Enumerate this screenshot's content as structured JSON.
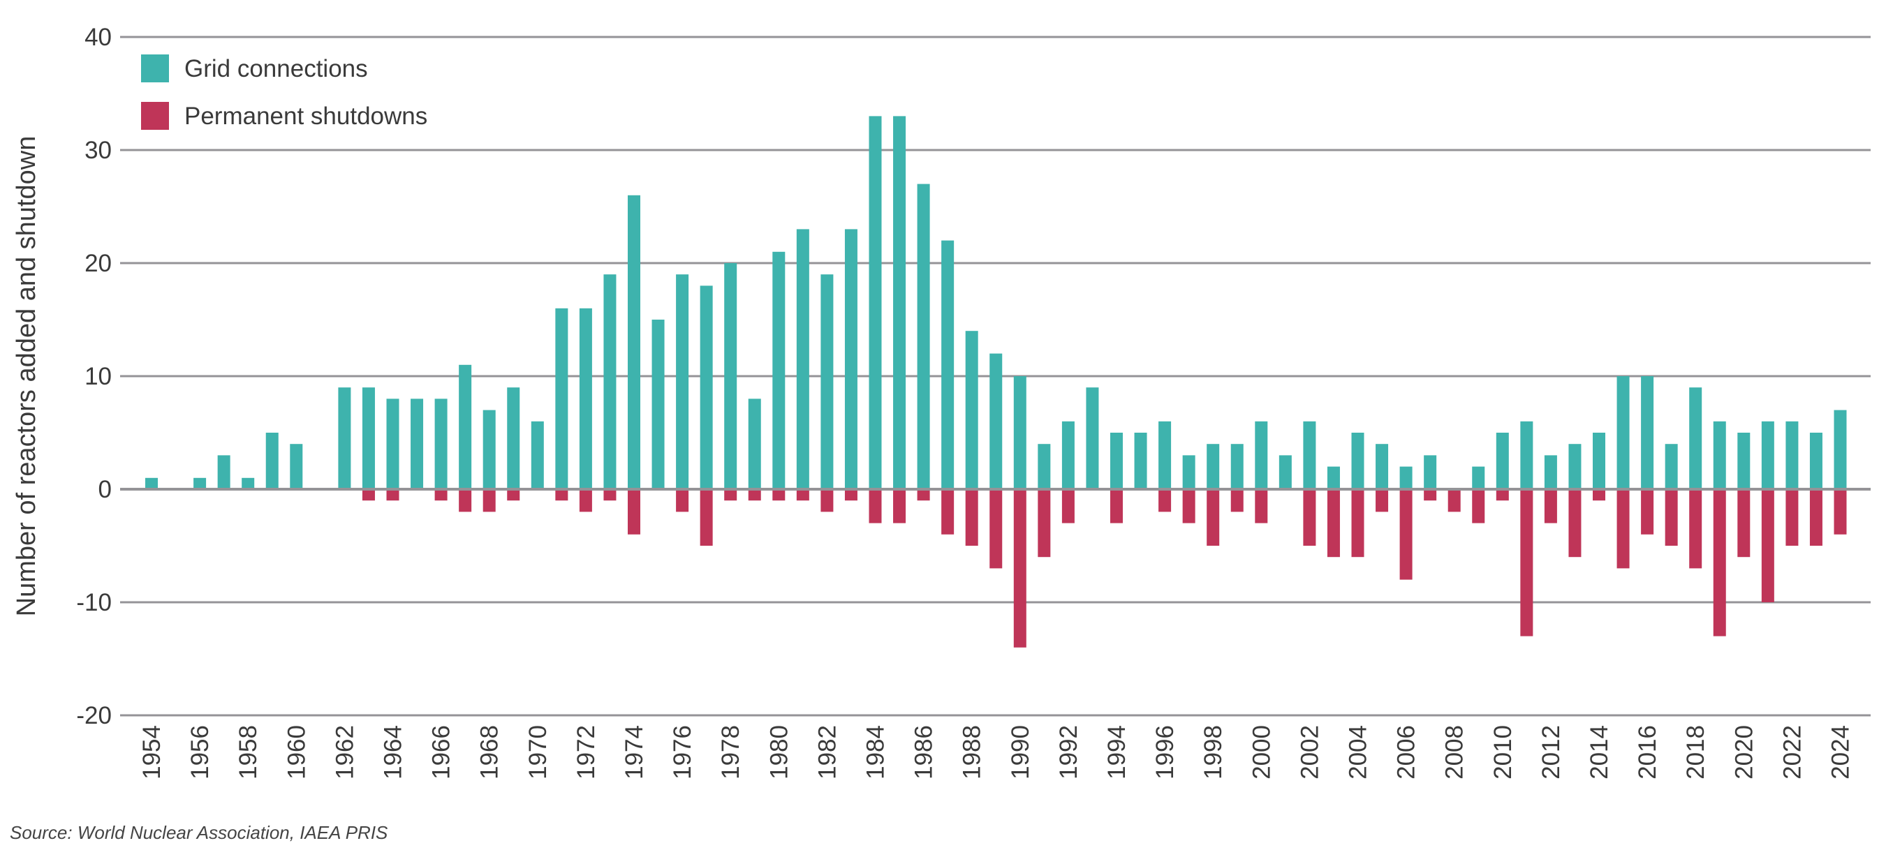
{
  "chart_data": {
    "type": "bar",
    "title": "",
    "xlabel": "",
    "ylabel": "Number of reactors added and shutdown",
    "ylim": [
      -20,
      40
    ],
    "yticks": [
      -20,
      -10,
      0,
      10,
      20,
      30,
      40
    ],
    "grid": true,
    "legend_position": "top-left",
    "categories": [
      1954,
      1955,
      1956,
      1957,
      1958,
      1959,
      1960,
      1961,
      1962,
      1963,
      1964,
      1965,
      1966,
      1967,
      1968,
      1969,
      1970,
      1971,
      1972,
      1973,
      1974,
      1975,
      1976,
      1977,
      1978,
      1979,
      1980,
      1981,
      1982,
      1983,
      1984,
      1985,
      1986,
      1987,
      1988,
      1989,
      1990,
      1991,
      1992,
      1993,
      1994,
      1995,
      1996,
      1997,
      1998,
      1999,
      2000,
      2001,
      2002,
      2003,
      2004,
      2005,
      2006,
      2007,
      2008,
      2009,
      2010,
      2011,
      2012,
      2013,
      2014,
      2015,
      2016,
      2017,
      2018,
      2019,
      2020,
      2021,
      2022,
      2023,
      2024
    ],
    "xtick_labels": [
      "1954",
      "1956",
      "1958",
      "1960",
      "1962",
      "1964",
      "1966",
      "1968",
      "1970",
      "1972",
      "1974",
      "1976",
      "1978",
      "1980",
      "1982",
      "1984",
      "1986",
      "1988",
      "1990",
      "1992",
      "1994",
      "1996",
      "1998",
      "2000",
      "2002",
      "2004",
      "2006",
      "2008",
      "2010",
      "2012",
      "2014",
      "2016",
      "2018",
      "2020",
      "2022",
      "2024"
    ],
    "series": [
      {
        "name": "Grid connections",
        "color": "#3eb3ad",
        "values": [
          1,
          0,
          1,
          3,
          1,
          5,
          4,
          0,
          9,
          9,
          8,
          8,
          8,
          11,
          7,
          9,
          6,
          16,
          16,
          19,
          26,
          15,
          19,
          18,
          20,
          8,
          21,
          23,
          19,
          23,
          33,
          33,
          27,
          22,
          14,
          12,
          10,
          4,
          6,
          9,
          5,
          5,
          6,
          3,
          4,
          4,
          6,
          3,
          6,
          2,
          5,
          4,
          2,
          3,
          0,
          2,
          5,
          6,
          3,
          4,
          5,
          10,
          10,
          4,
          9,
          6,
          5,
          6,
          6,
          5,
          7
        ]
      },
      {
        "name": "Permanent shutdowns",
        "color": "#bf3558",
        "values": [
          0,
          0,
          0,
          0,
          0,
          0,
          0,
          0,
          0,
          -1,
          -1,
          0,
          -1,
          -2,
          -2,
          -1,
          0,
          -1,
          -2,
          -1,
          -4,
          0,
          -2,
          -5,
          -1,
          -1,
          -1,
          -1,
          -2,
          -1,
          -3,
          -3,
          -1,
          -4,
          -5,
          -7,
          -14,
          -6,
          -3,
          0,
          -3,
          0,
          -2,
          -3,
          -5,
          -2,
          -3,
          0,
          -5,
          -6,
          -6,
          -2,
          -8,
          -1,
          -2,
          -3,
          -1,
          -13,
          -3,
          -6,
          -1,
          -7,
          -4,
          -5,
          -7,
          -13,
          -6,
          -10,
          -5,
          -5,
          -4
        ]
      }
    ]
  },
  "source": "Source: World Nuclear Association, IAEA PRIS"
}
